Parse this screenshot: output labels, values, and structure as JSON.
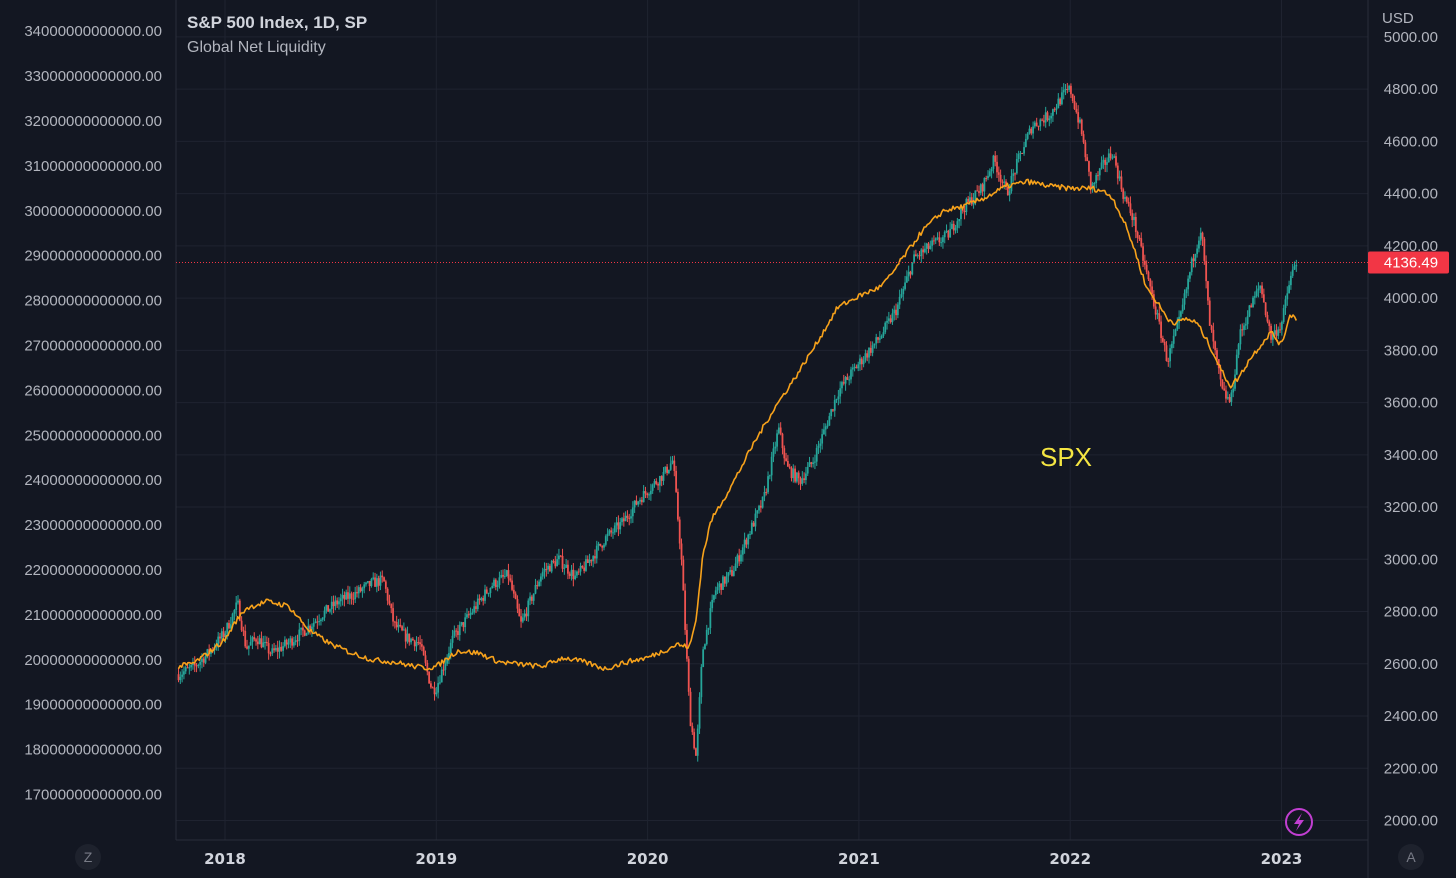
{
  "legend": {
    "title": "S&P 500 Index, 1D, SP",
    "subtitle": "Global Net Liquidity"
  },
  "annotation": "SPX",
  "currency_label": "USD",
  "price_badge": "4136.49",
  "buttons": {
    "left": "Z",
    "right": "A"
  },
  "colors": {
    "background": "#131722",
    "grid": "#2a2e39",
    "up": "#26a69a",
    "down": "#ef5350",
    "liquidity": "#f7a21b",
    "annotation": "#f5e642",
    "badge": "#f23645",
    "lightning": "#c23fd2"
  },
  "chart_data": {
    "type": "line",
    "title": "S&P 500 Index, 1D, SP",
    "series": [
      {
        "name": "S&P 500 Index (candles)",
        "axis": "right",
        "x": [
          2017.78,
          2017.85,
          2017.92,
          2018.0,
          2018.06,
          2018.1,
          2018.15,
          2018.22,
          2018.3,
          2018.38,
          2018.46,
          2018.54,
          2018.62,
          2018.7,
          2018.75,
          2018.8,
          2018.86,
          2018.92,
          2018.98,
          2019.0,
          2019.08,
          2019.16,
          2019.26,
          2019.34,
          2019.4,
          2019.5,
          2019.58,
          2019.66,
          2019.72,
          2019.8,
          2019.88,
          2019.96,
          2020.08,
          2020.12,
          2020.16,
          2020.2,
          2020.23,
          2020.26,
          2020.32,
          2020.4,
          2020.48,
          2020.55,
          2020.62,
          2020.66,
          2020.72,
          2020.78,
          2020.84,
          2020.9,
          2020.98,
          2021.05,
          2021.1,
          2021.18,
          2021.26,
          2021.34,
          2021.42,
          2021.5,
          2021.58,
          2021.64,
          2021.7,
          2021.76,
          2021.82,
          2021.9,
          2021.97,
          2022.0,
          2022.05,
          2022.1,
          2022.15,
          2022.2,
          2022.25,
          2022.3,
          2022.36,
          2022.42,
          2022.46,
          2022.52,
          2022.58,
          2022.62,
          2022.66,
          2022.72,
          2022.76,
          2022.8,
          2022.85,
          2022.9,
          2022.95,
          2023.0,
          2023.04,
          2023.07
        ],
        "y": [
          2560,
          2585,
          2640,
          2720,
          2830,
          2660,
          2700,
          2640,
          2680,
          2730,
          2790,
          2840,
          2870,
          2910,
          2920,
          2750,
          2700,
          2680,
          2500,
          2510,
          2700,
          2790,
          2900,
          2940,
          2750,
          2950,
          3000,
          2930,
          2990,
          3080,
          3140,
          3230,
          3330,
          3380,
          3000,
          2400,
          2240,
          2650,
          2880,
          2950,
          3100,
          3230,
          3500,
          3350,
          3300,
          3370,
          3500,
          3640,
          3730,
          3800,
          3850,
          3960,
          4150,
          4200,
          4240,
          4350,
          4420,
          4530,
          4400,
          4540,
          4660,
          4700,
          4780,
          4800,
          4650,
          4420,
          4500,
          4560,
          4400,
          4300,
          4100,
          3900,
          3760,
          3920,
          4150,
          4270,
          3900,
          3640,
          3600,
          3850,
          3960,
          4050,
          3850,
          3900,
          4070,
          4136
        ]
      },
      {
        "name": "Global Net Liquidity",
        "axis": "left",
        "unit": "USD",
        "x": [
          2017.78,
          2017.85,
          2017.92,
          2018.0,
          2018.05,
          2018.1,
          2018.2,
          2018.3,
          2018.4,
          2018.5,
          2018.6,
          2018.7,
          2018.8,
          2018.9,
          2018.95,
          2019.0,
          2019.1,
          2019.2,
          2019.3,
          2019.4,
          2019.5,
          2019.6,
          2019.7,
          2019.8,
          2019.9,
          2020.0,
          2020.1,
          2020.14,
          2020.17,
          2020.2,
          2020.23,
          2020.26,
          2020.3,
          2020.4,
          2020.5,
          2020.6,
          2020.7,
          2020.8,
          2020.9,
          2021.0,
          2021.1,
          2021.15,
          2021.2,
          2021.3,
          2021.4,
          2021.5,
          2021.6,
          2021.7,
          2021.8,
          2021.9,
          2022.0,
          2022.05,
          2022.1,
          2022.15,
          2022.2,
          2022.26,
          2022.3,
          2022.36,
          2022.42,
          2022.46,
          2022.5,
          2022.55,
          2022.6,
          2022.66,
          2022.72,
          2022.76,
          2022.8,
          2022.85,
          2022.9,
          2022.95,
          2023.0,
          2023.04,
          2023.07
        ],
        "y": [
          19850000000000.0,
          19920000000000.0,
          20150000000000.0,
          20450000000000.0,
          20850000000000.0,
          21150000000000.0,
          21300000000000.0,
          21200000000000.0,
          20650000000000.0,
          20350000000000.0,
          20150000000000.0,
          20000000000000.0,
          19950000000000.0,
          19850000000000.0,
          19820000000000.0,
          19850000000000.0,
          20200000000000.0,
          20150000000000.0,
          19950000000000.0,
          19900000000000.0,
          19850000000000.0,
          20050000000000.0,
          19950000000000.0,
          19800000000000.0,
          19950000000000.0,
          20050000000000.0,
          20250000000000.0,
          20350000000000.0,
          20300000000000.0,
          20300000000000.0,
          20900000000000.0,
          22300000000000.0,
          23100000000000.0,
          23900000000000.0,
          24800000000000.0,
          25600000000000.0,
          26300000000000.0,
          27050000000000.0,
          27850000000000.0,
          28100000000000.0,
          28300000000000.0,
          28550000000000.0,
          28900000000000.0,
          29550000000000.0,
          30000000000000.0,
          30100000000000.0,
          30300000000000.0,
          30550000000000.0,
          30650000000000.0,
          30550000000000.0,
          30500000000000.0,
          30500000000000.0,
          30500000000000.0,
          30450000000000.0,
          30300000000000.0,
          29700000000000.0,
          29200000000000.0,
          28300000000000.0,
          27900000000000.0,
          27600000000000.0,
          27500000000000.0,
          27600000000000.0,
          27500000000000.0,
          27000000000000.0,
          26400000000000.0,
          26100000000000.0,
          26300000000000.0,
          26700000000000.0,
          27000000000000.0,
          27300000000000.0,
          27000000000000.0,
          27700000000000.0,
          27600000000000.0
        ]
      }
    ],
    "x_ticks": [
      "2018",
      "2019",
      "2020",
      "2021",
      "2022",
      "2023"
    ],
    "y_right_ticks": [
      "2000.00",
      "2200.00",
      "2400.00",
      "2600.00",
      "2800.00",
      "3000.00",
      "3200.00",
      "3400.00",
      "3600.00",
      "3800.00",
      "4000.00",
      "4200.00",
      "4400.00",
      "4600.00",
      "4800.00",
      "5000.00"
    ],
    "y_left_ticks": [
      "17000000000000.00",
      "18000000000000.00",
      "19000000000000.00",
      "20000000000000.00",
      "21000000000000.00",
      "22000000000000.00",
      "23000000000000.00",
      "24000000000000.00",
      "25000000000000.00",
      "26000000000000.00",
      "27000000000000.00",
      "28000000000000.00",
      "29000000000000.00",
      "30000000000000.00",
      "31000000000000.00",
      "32000000000000.00",
      "33000000000000.00",
      "34000000000000.00"
    ],
    "ylim_right": [
      2000,
      5000
    ],
    "ylim_left": [
      17000000000000,
      34000000000000
    ],
    "last_price": 4136.49
  }
}
